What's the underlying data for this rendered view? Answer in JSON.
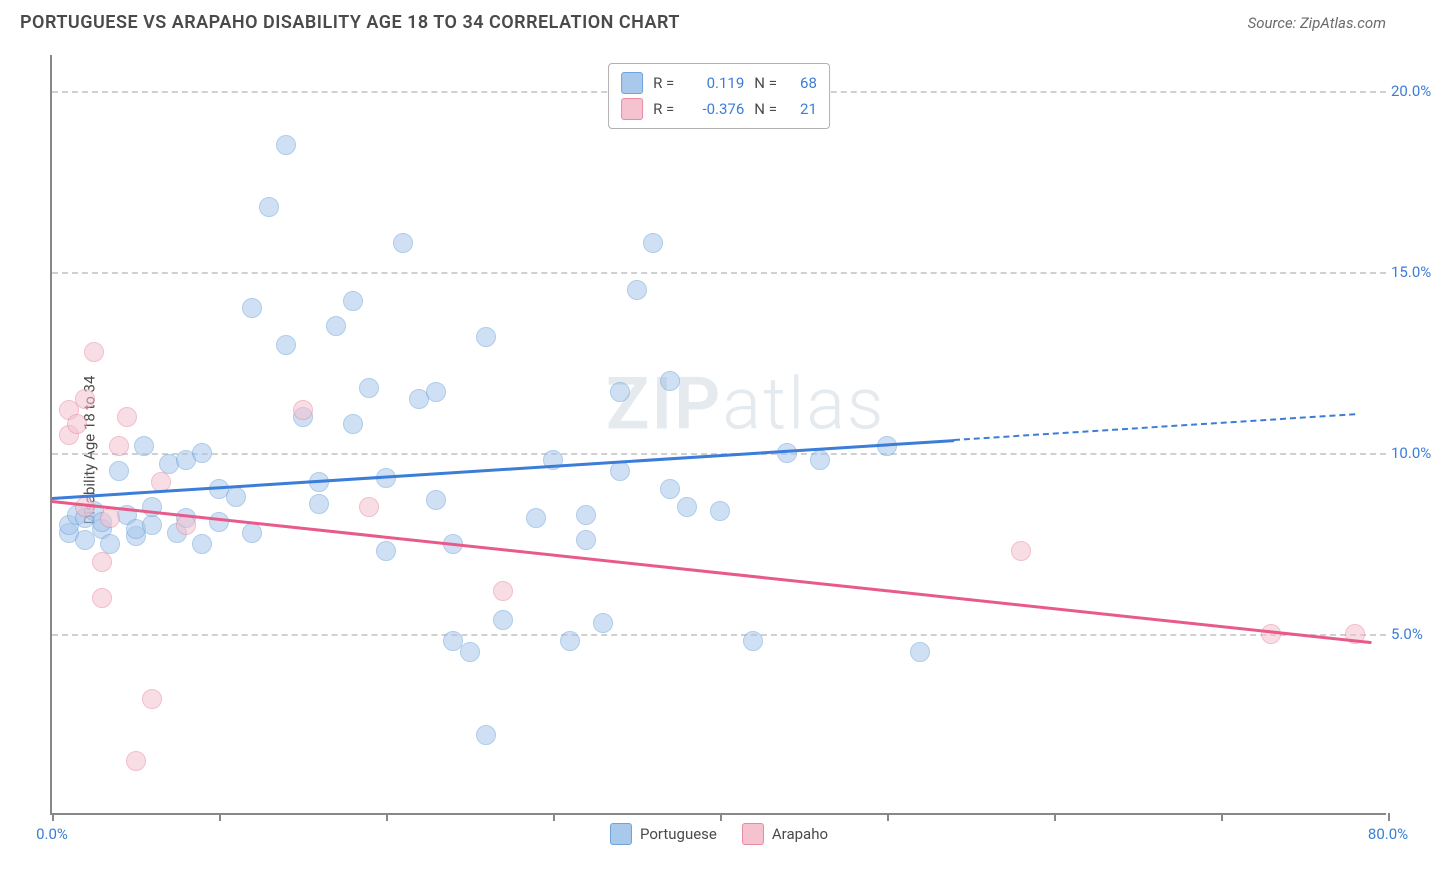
{
  "header": {
    "title": "PORTUGUESE VS ARAPAHO DISABILITY AGE 18 TO 34 CORRELATION CHART",
    "source": "Source: ZipAtlas.com"
  },
  "chart": {
    "type": "scatter",
    "ylabel": "Disability Age 18 to 34",
    "xlim": [
      0,
      80
    ],
    "ylim": [
      0,
      21
    ],
    "x_ticks": [
      0,
      10,
      20,
      30,
      40,
      50,
      60,
      70,
      80
    ],
    "x_tick_labels": {
      "0": "0.0%",
      "80": "80.0%"
    },
    "y_gridlines": [
      5,
      10,
      15,
      20
    ],
    "y_tick_labels": {
      "5": "5.0%",
      "10": "10.0%",
      "15": "15.0%",
      "20": "20.0%"
    },
    "background_color": "#ffffff",
    "grid_color": "#d0d0d0",
    "axis_color": "#888888",
    "marker_radius": 10,
    "marker_opacity": 0.55,
    "series": {
      "portuguese": {
        "label": "Portuguese",
        "color": "#a8c8ec",
        "border": "#6fa3d9",
        "line_color": "#3b7dd8",
        "R": "0.119",
        "N": "68",
        "trend": {
          "x1": 0,
          "y1": 8.8,
          "x2": 54,
          "y2": 10.4,
          "dash_to_x": 78
        },
        "points": [
          [
            1,
            7.8
          ],
          [
            1,
            8.0
          ],
          [
            1.5,
            8.3
          ],
          [
            2,
            7.6
          ],
          [
            2,
            8.2
          ],
          [
            2.5,
            8.4
          ],
          [
            3,
            7.9
          ],
          [
            3,
            8.1
          ],
          [
            3.5,
            7.5
          ],
          [
            4,
            9.5
          ],
          [
            4.5,
            8.3
          ],
          [
            5,
            7.7
          ],
          [
            5,
            7.9
          ],
          [
            5.5,
            10.2
          ],
          [
            6,
            8.0
          ],
          [
            6,
            8.5
          ],
          [
            7,
            9.7
          ],
          [
            7.5,
            7.8
          ],
          [
            8,
            9.8
          ],
          [
            8,
            8.2
          ],
          [
            9,
            10.0
          ],
          [
            9,
            7.5
          ],
          [
            10,
            8.1
          ],
          [
            10,
            9.0
          ],
          [
            11,
            8.8
          ],
          [
            12,
            7.8
          ],
          [
            12,
            14.0
          ],
          [
            13,
            16.8
          ],
          [
            14,
            13.0
          ],
          [
            14,
            18.5
          ],
          [
            15,
            11.0
          ],
          [
            16,
            8.6
          ],
          [
            16,
            9.2
          ],
          [
            17,
            13.5
          ],
          [
            18,
            10.8
          ],
          [
            18,
            14.2
          ],
          [
            19,
            11.8
          ],
          [
            20,
            7.3
          ],
          [
            20,
            9.3
          ],
          [
            21,
            15.8
          ],
          [
            22,
            11.5
          ],
          [
            23,
            8.7
          ],
          [
            23,
            11.7
          ],
          [
            24,
            4.8
          ],
          [
            24,
            7.5
          ],
          [
            25,
            4.5
          ],
          [
            26,
            2.2
          ],
          [
            26,
            13.2
          ],
          [
            27,
            5.4
          ],
          [
            29,
            8.2
          ],
          [
            30,
            9.8
          ],
          [
            31,
            4.8
          ],
          [
            32,
            7.6
          ],
          [
            32,
            8.3
          ],
          [
            33,
            5.3
          ],
          [
            34,
            9.5
          ],
          [
            34,
            11.7
          ],
          [
            35,
            14.5
          ],
          [
            36,
            15.8
          ],
          [
            37,
            9.0
          ],
          [
            37,
            12.0
          ],
          [
            38,
            8.5
          ],
          [
            40,
            8.4
          ],
          [
            42,
            4.8
          ],
          [
            44,
            10.0
          ],
          [
            46,
            9.8
          ],
          [
            50,
            10.2
          ],
          [
            52,
            4.5
          ]
        ]
      },
      "arapaho": {
        "label": "Arapaho",
        "color": "#f5c2cf",
        "border": "#e88aa3",
        "line_color": "#e85a8a",
        "R": "-0.376",
        "N": "21",
        "trend": {
          "x1": 0,
          "y1": 8.7,
          "x2": 79,
          "y2": 4.8
        },
        "points": [
          [
            1,
            10.5
          ],
          [
            1,
            11.2
          ],
          [
            1.5,
            10.8
          ],
          [
            2,
            8.5
          ],
          [
            2,
            11.5
          ],
          [
            2.5,
            12.8
          ],
          [
            3,
            7.0
          ],
          [
            3,
            6.0
          ],
          [
            3.5,
            8.2
          ],
          [
            4,
            10.2
          ],
          [
            4.5,
            11.0
          ],
          [
            5,
            1.5
          ],
          [
            6,
            3.2
          ],
          [
            6.5,
            9.2
          ],
          [
            8,
            8.0
          ],
          [
            15,
            11.2
          ],
          [
            19,
            8.5
          ],
          [
            27,
            6.2
          ],
          [
            58,
            7.3
          ],
          [
            73,
            5.0
          ],
          [
            78,
            5.0
          ]
        ]
      }
    },
    "watermark": "ZIPatlas"
  },
  "legend_top": {
    "r_label": "R =",
    "n_label": "N ="
  }
}
